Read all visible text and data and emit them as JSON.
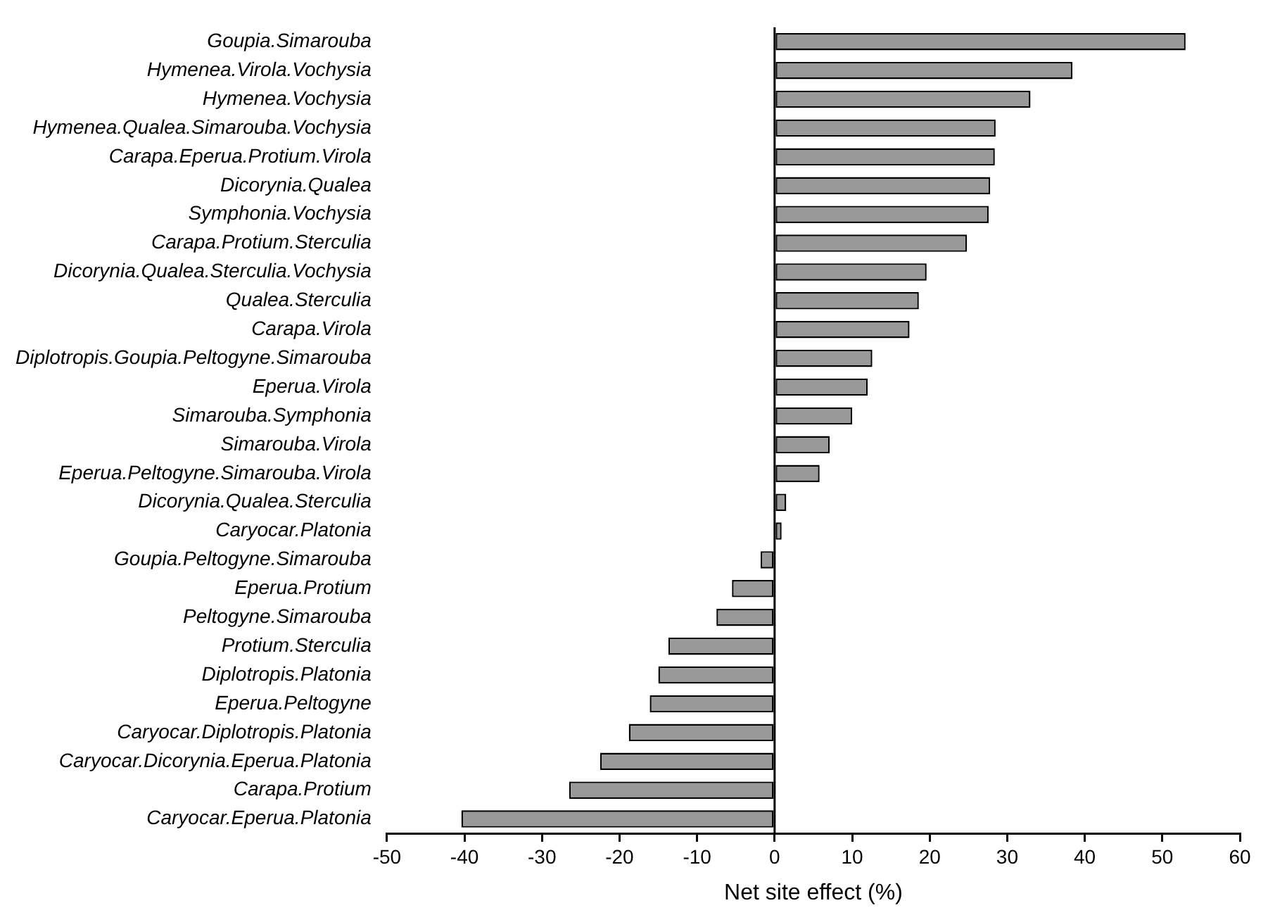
{
  "chart_data": {
    "type": "bar",
    "orientation": "horizontal",
    "xlabel": "Net site effect (%)",
    "categories": [
      "Goupia.Simarouba",
      "Hymenea.Virola.Vochysia",
      "Hymenea.Vochysia",
      "Hymenea.Qualea.Simarouba.Vochysia",
      "Carapa.Eperua.Protium.Virola",
      "Dicorynia.Qualea",
      "Symphonia.Vochysia",
      "Carapa.Protium.Sterculia",
      "Dicorynia.Qualea.Sterculia.Vochysia",
      "Qualea.Sterculia",
      "Carapa.Virola",
      "Diplotropis.Goupia.Peltogyne.Simarouba",
      "Eperua.Virola",
      "Simarouba.Symphonia",
      "Simarouba.Virola",
      "Eperua.Peltogyne.Simarouba.Virola",
      "Dicorynia.Qualea.Sterculia",
      "Caryocar.Platonia",
      "Goupia.Peltogyne.Simarouba",
      "Eperua.Protium",
      "Peltogyne.Simarouba",
      "Protium.Sterculia",
      "Diplotropis.Platonia",
      "Eperua.Peltogyne",
      "Caryocar.Diplotropis.Platonia",
      "Caryocar.Dicorynia.Eperua.Platonia",
      "Carapa.Protium",
      "Caryocar.Eperua.Platonia"
    ],
    "values": [
      53.0,
      38.4,
      33.0,
      28.5,
      28.4,
      27.8,
      27.6,
      24.8,
      19.6,
      18.6,
      17.4,
      12.6,
      12.0,
      10.0,
      7.1,
      5.8,
      1.5,
      0.9,
      -1.8,
      -5.5,
      -7.5,
      -13.7,
      -15.0,
      -16.1,
      -18.8,
      -22.5,
      -26.5,
      -40.4
    ],
    "color": "#999999",
    "xlim": [
      -50,
      60
    ],
    "xticks": [
      -50,
      -40,
      -30,
      -20,
      -10,
      0,
      10,
      20,
      30,
      40,
      50,
      60
    ]
  }
}
